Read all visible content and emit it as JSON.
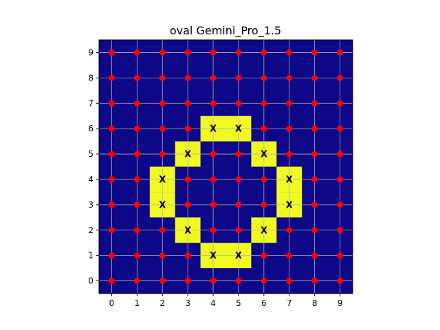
{
  "chart_data": {
    "type": "heatmap",
    "title": "oval Gemini_Pro_1.5",
    "xlabel": "",
    "ylabel": "",
    "xlim": [
      -0.5,
      9.5
    ],
    "ylim": [
      -0.5,
      9.5
    ],
    "x_ticks": [
      "0",
      "1",
      "2",
      "3",
      "4",
      "5",
      "6",
      "7",
      "8",
      "9"
    ],
    "y_ticks": [
      "0",
      "1",
      "2",
      "3",
      "4",
      "5",
      "6",
      "7",
      "8",
      "9"
    ],
    "grid": true,
    "colors": {
      "background": "#0d0887",
      "highlight": "#f0f921",
      "point": "#ff0000",
      "grid": "#b0b0b0"
    },
    "highlighted_cells": [
      {
        "x": 4,
        "y": 6,
        "label": "X"
      },
      {
        "x": 5,
        "y": 6,
        "label": "X"
      },
      {
        "x": 3,
        "y": 5,
        "label": "X"
      },
      {
        "x": 6,
        "y": 5,
        "label": "X"
      },
      {
        "x": 2,
        "y": 4,
        "label": "X"
      },
      {
        "x": 7,
        "y": 4,
        "label": "X"
      },
      {
        "x": 2,
        "y": 3,
        "label": "X"
      },
      {
        "x": 7,
        "y": 3,
        "label": "X"
      },
      {
        "x": 3,
        "y": 2,
        "label": "X"
      },
      {
        "x": 6,
        "y": 2,
        "label": "X"
      },
      {
        "x": 4,
        "y": 1,
        "label": "X"
      },
      {
        "x": 5,
        "y": 1,
        "label": "X"
      }
    ],
    "points": "all grid points (x=0..9, y=0..9) not marked X show a red dot"
  }
}
